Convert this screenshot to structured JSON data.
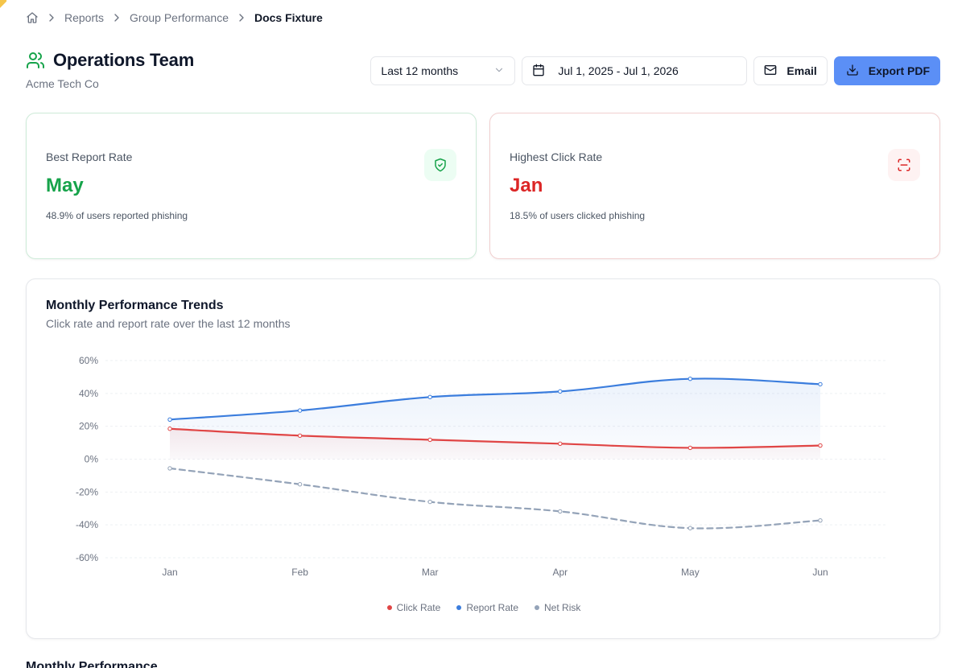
{
  "breadcrumb": {
    "items": [
      "Reports",
      "Group Performance"
    ],
    "current": "Docs Fixture"
  },
  "header": {
    "title": "Operations Team",
    "subtitle": "Acme Tech Co"
  },
  "toolbar": {
    "period": "Last 12 months",
    "date_range": "Jul 1, 2025 - Jul 1, 2026",
    "email_label": "Email",
    "export_label": "Export PDF"
  },
  "best_report": {
    "label": "Best Report Rate",
    "value": "May",
    "desc": "48.9% of users reported phishing"
  },
  "highest_click": {
    "label": "Highest Click Rate",
    "value": "Jan",
    "desc": "18.5% of users clicked phishing"
  },
  "chart_card": {
    "title": "Monthly Performance Trends",
    "subtitle": "Click rate and report rate over the last 12 months"
  },
  "chart_data": {
    "type": "line",
    "categories": [
      "Jan",
      "Feb",
      "Mar",
      "Apr",
      "May",
      "Jun"
    ],
    "ylim": [
      -60,
      60
    ],
    "yticks": [
      "60%",
      "40%",
      "20%",
      "0%",
      "-20%",
      "-40%",
      "-60%"
    ],
    "grid": true,
    "legend": "bottom",
    "series": [
      {
        "name": "Click Rate",
        "color": "#e04545",
        "style": "solid",
        "fill": true,
        "values": [
          18.5,
          14.3,
          11.8,
          9.4,
          6.9,
          8.3
        ]
      },
      {
        "name": "Report Rate",
        "color": "#3b7ddd",
        "style": "solid",
        "fill": true,
        "values": [
          24.1,
          29.6,
          37.8,
          41.2,
          48.9,
          45.6
        ]
      },
      {
        "name": "Net Risk",
        "color": "#94a3b8",
        "style": "dashed",
        "fill": false,
        "values": [
          -5.6,
          -15.3,
          -26.0,
          -31.8,
          -42.0,
          -37.3
        ]
      }
    ]
  },
  "next_section": {
    "title": "Monthly Performance"
  }
}
